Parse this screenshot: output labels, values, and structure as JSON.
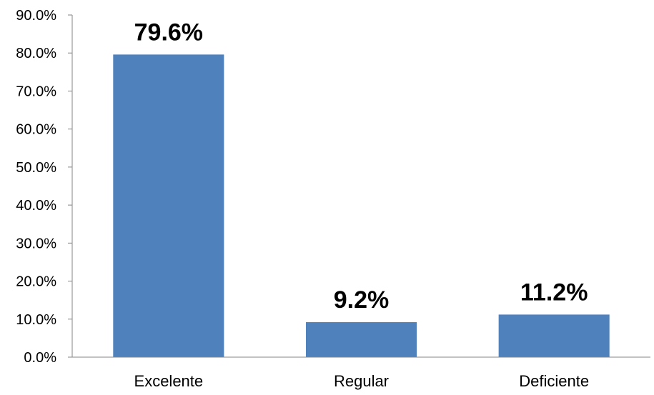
{
  "chart_data": {
    "type": "bar",
    "categories": [
      "Excelente",
      "Regular",
      "Deficiente"
    ],
    "values": [
      79.6,
      9.2,
      11.2
    ],
    "data_labels": [
      "79.6%",
      "9.2%",
      "11.2%"
    ],
    "y_ticks": [
      "0.0%",
      "10.0%",
      "20.0%",
      "30.0%",
      "40.0%",
      "50.0%",
      "60.0%",
      "70.0%",
      "80.0%",
      "90.0%"
    ],
    "ylim": [
      0,
      90
    ],
    "title": "",
    "xlabel": "",
    "ylabel": "",
    "grid": false,
    "bar_color": "#4F81BD"
  }
}
